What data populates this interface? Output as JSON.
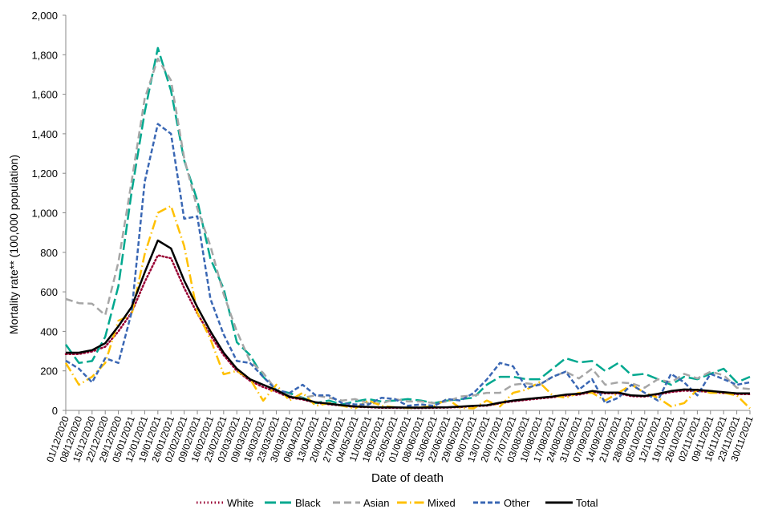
{
  "chart_data": {
    "type": "line",
    "title": "",
    "xlabel": "Date of death",
    "ylabel": "Mortality rate** (100,000 population)",
    "ylim": [
      0,
      2000
    ],
    "yticks": [
      "0",
      "200",
      "400",
      "600",
      "800",
      "1,000",
      "1,200",
      "1,400",
      "1,600",
      "1,800",
      "2,000"
    ],
    "ytick_values": [
      0,
      200,
      400,
      600,
      800,
      1000,
      1200,
      1400,
      1600,
      1800,
      2000
    ],
    "grid": false,
    "legend": "bottom",
    "categories": [
      "01/12/2020",
      "08/12/2020",
      "15/12/2020",
      "22/12/2020",
      "29/12/2020",
      "05/01/2021",
      "12/01/2021",
      "19/01/2021",
      "26/01/2021",
      "02/02/2021",
      "09/02/2021",
      "16/02/2021",
      "23/02/2021",
      "02/03/2021",
      "09/03/2021",
      "16/03/2021",
      "23/03/2021",
      "30/03/2021",
      "06/04/2021",
      "13/04/2021",
      "20/04/2021",
      "27/04/2021",
      "04/05/2021",
      "11/05/2021",
      "18/05/2021",
      "25/05/2021",
      "01/06/2021",
      "08/06/2021",
      "15/06/2021",
      "22/06/2021",
      "29/06/2021",
      "06/07/2021",
      "13/07/2021",
      "20/07/2021",
      "27/07/2021",
      "03/08/2021",
      "10/08/2021",
      "17/08/2021",
      "24/08/2021",
      "31/08/2021",
      "07/09/2021",
      "14/09/2021",
      "21/09/2021",
      "28/09/2021",
      "05/10/2021",
      "12/10/2021",
      "19/10/2021",
      "26/10/2021",
      "02/11/2021",
      "09/11/2021",
      "16/11/2021",
      "23/11/2021",
      "30/11/2021"
    ],
    "series": [
      {
        "name": "White",
        "color": "#990033",
        "style": "dotted",
        "values": [
          285,
          285,
          298,
          322,
          400,
          495,
          650,
          785,
          770,
          620,
          490,
          380,
          280,
          200,
          150,
          118,
          95,
          65,
          55,
          38,
          31,
          24,
          18,
          16,
          13,
          13,
          12,
          12,
          13,
          14,
          17,
          21,
          24,
          36,
          46,
          53,
          60,
          66,
          75,
          80,
          93,
          86,
          86,
          72,
          70,
          80,
          93,
          100,
          98,
          93,
          88,
          82,
          82
        ]
      },
      {
        "name": "Black",
        "color": "#00A88F",
        "style": "longdash",
        "values": [
          333,
          240,
          250,
          373,
          629,
          1103,
          1509,
          1834,
          1618,
          1266,
          1063,
          767,
          617,
          345,
          280,
          170,
          103,
          88,
          64,
          37,
          50,
          30,
          45,
          57,
          45,
          50,
          57,
          50,
          37,
          50,
          57,
          64,
          130,
          170,
          170,
          158,
          158,
          211,
          264,
          243,
          250,
          199,
          240,
          178,
          185,
          158,
          130,
          170,
          158,
          185,
          211,
          142,
          170
        ]
      },
      {
        "name": "Asian",
        "color": "#A6A6A6",
        "style": "dash",
        "values": [
          564,
          543,
          540,
          482,
          750,
          1157,
          1578,
          1780,
          1670,
          1278,
          1022,
          832,
          588,
          400,
          250,
          190,
          103,
          76,
          64,
          76,
          64,
          50,
          57,
          37,
          35,
          57,
          45,
          45,
          37,
          45,
          70,
          76,
          89,
          89,
          130,
          137,
          130,
          170,
          196,
          162,
          211,
          130,
          142,
          137,
          115,
          158,
          142,
          185,
          162,
          196,
          178,
          115,
          108
        ]
      },
      {
        "name": "Mixed",
        "color": "#FFC000",
        "style": "dashdot",
        "values": [
          240,
          130,
          170,
          240,
          454,
          482,
          791,
          1000,
          1035,
          832,
          495,
          361,
          183,
          200,
          160,
          49,
          130,
          50,
          89,
          23,
          37,
          23,
          10,
          50,
          23,
          16,
          12,
          16,
          23,
          57,
          12,
          10,
          50,
          20,
          89,
          105,
          142,
          76,
          64,
          89,
          89,
          50,
          89,
          130,
          89,
          64,
          20,
          37,
          105,
          89,
          89,
          76,
          10
        ]
      },
      {
        "name": "Other",
        "color": "#3A67B4",
        "style": "shortdash",
        "values": [
          252,
          211,
          142,
          264,
          240,
          495,
          1157,
          1450,
          1400,
          970,
          982,
          564,
          385,
          250,
          240,
          170,
          103,
          88,
          130,
          76,
          76,
          37,
          30,
          30,
          64,
          57,
          23,
          30,
          23,
          57,
          50,
          88,
          156,
          240,
          223,
          115,
          130,
          170,
          196,
          105,
          158,
          37,
          64,
          130,
          89,
          50,
          185,
          142,
          76,
          185,
          158,
          130,
          142
        ]
      },
      {
        "name": "Total",
        "color": "#000000",
        "style": "solid",
        "values": [
          292,
          292,
          305,
          340,
          426,
          523,
          698,
          860,
          820,
          657,
          523,
          400,
          292,
          211,
          158,
          130,
          103,
          69,
          59,
          41,
          34,
          26,
          20,
          18,
          15,
          15,
          14,
          14,
          15,
          16,
          19,
          23,
          26,
          39,
          50,
          57,
          64,
          70,
          80,
          84,
          98,
          90,
          90,
          76,
          73,
          84,
          98,
          106,
          104,
          98,
          92,
          86,
          86
        ]
      }
    ]
  }
}
